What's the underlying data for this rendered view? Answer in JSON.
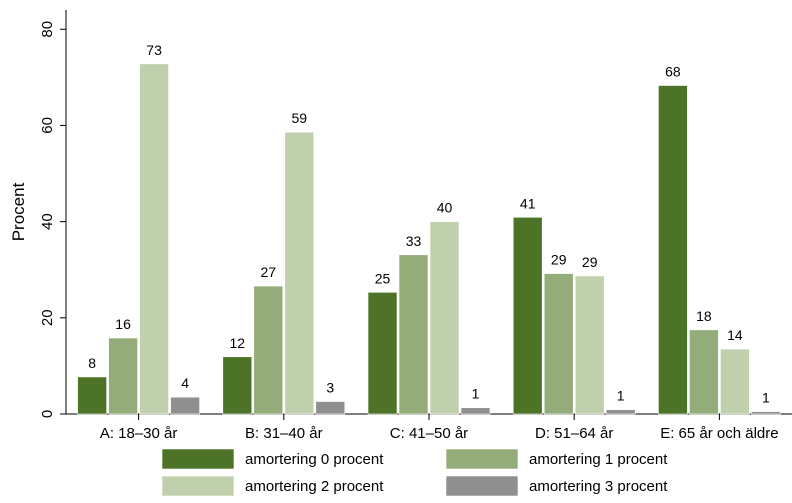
{
  "chart_data": {
    "type": "bar",
    "title": "",
    "xlabel": "",
    "ylabel": "Procent",
    "ylim": [
      0,
      84
    ],
    "yticks": [
      0,
      20,
      40,
      60,
      80
    ],
    "grid": false,
    "legend_position": "bottom",
    "categories": [
      "A: 18–30 år",
      "B: 31–40 år",
      "C: 41–50 år",
      "D: 51–64 år",
      "E: 65 år och äldre"
    ],
    "series": [
      {
        "name": "amortering 0 procent",
        "color": "#4d7326",
        "values": [
          7.7,
          11.9,
          25.3,
          40.9,
          68.3
        ],
        "labels": [
          "8",
          "12",
          "25",
          "41",
          "68"
        ]
      },
      {
        "name": "amortering 1 procent",
        "color": "#94ac7a",
        "values": [
          15.8,
          26.6,
          33.1,
          29.2,
          17.5
        ],
        "labels": [
          "16",
          "27",
          "33",
          "29",
          "18"
        ]
      },
      {
        "name": "amortering 2 procent",
        "color": "#c0d0ac",
        "values": [
          72.8,
          58.6,
          40.0,
          28.7,
          13.5
        ],
        "labels": [
          "73",
          "59",
          "40",
          "29",
          "14"
        ]
      },
      {
        "name": "amortering 3 procent",
        "color": "#8f8f8f",
        "values": [
          3.5,
          2.6,
          1.3,
          0.9,
          0.5
        ],
        "labels": [
          "4",
          "3",
          "1",
          "1",
          "1"
        ]
      }
    ]
  }
}
